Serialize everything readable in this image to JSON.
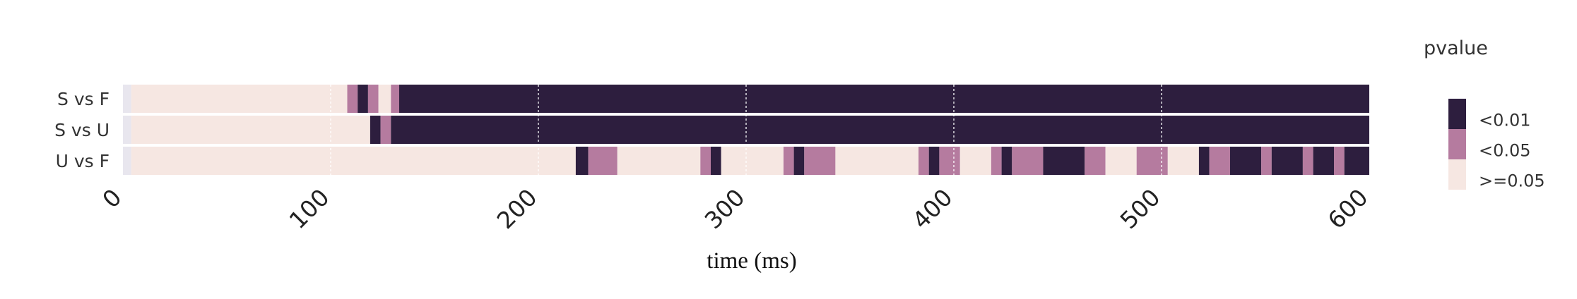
{
  "chart_data": {
    "type": "heatmap",
    "xlabel": "time (ms)",
    "xlim": [
      0,
      600
    ],
    "xticks": [
      0,
      100,
      200,
      300,
      400,
      500,
      600
    ],
    "vgrid": [
      100,
      200,
      300,
      400,
      500
    ],
    "legend": {
      "title": "pvalue",
      "placement": "right",
      "entries": [
        {
          "label": "<0.01",
          "color": "#2d1e3e"
        },
        {
          "label": "<0.05",
          "color": "#b57b9f"
        },
        {
          "label": ">=0.05",
          "color": "#f6e7e2"
        }
      ]
    },
    "colors": {
      "sig01": "#2d1e3e",
      "sig05": "#b57b9f",
      "ns": "#f6e7e2",
      "start": "#e8e6ee"
    },
    "rows": [
      {
        "label": "S vs F",
        "segments": [
          {
            "start": 0,
            "end": 4,
            "level": "start"
          },
          {
            "start": 4,
            "end": 108,
            "level": "ns"
          },
          {
            "start": 108,
            "end": 113,
            "level": "sig05"
          },
          {
            "start": 113,
            "end": 118,
            "level": "sig01"
          },
          {
            "start": 118,
            "end": 123,
            "level": "sig05"
          },
          {
            "start": 123,
            "end": 129,
            "level": "ns"
          },
          {
            "start": 129,
            "end": 133,
            "level": "sig05"
          },
          {
            "start": 133,
            "end": 603,
            "level": "sig01"
          }
        ]
      },
      {
        "label": "S vs U",
        "segments": [
          {
            "start": 0,
            "end": 4,
            "level": "start"
          },
          {
            "start": 4,
            "end": 119,
            "level": "ns"
          },
          {
            "start": 119,
            "end": 124,
            "level": "sig01"
          },
          {
            "start": 124,
            "end": 129,
            "level": "sig05"
          },
          {
            "start": 129,
            "end": 603,
            "level": "sig01"
          }
        ]
      },
      {
        "label": "U vs F",
        "segments": [
          {
            "start": 0,
            "end": 4,
            "level": "start"
          },
          {
            "start": 4,
            "end": 218,
            "level": "ns"
          },
          {
            "start": 218,
            "end": 224,
            "level": "sig01"
          },
          {
            "start": 224,
            "end": 238,
            "level": "sig05"
          },
          {
            "start": 238,
            "end": 278,
            "level": "ns"
          },
          {
            "start": 278,
            "end": 283,
            "level": "sig05"
          },
          {
            "start": 283,
            "end": 288,
            "level": "sig01"
          },
          {
            "start": 288,
            "end": 318,
            "level": "ns"
          },
          {
            "start": 318,
            "end": 323,
            "level": "sig05"
          },
          {
            "start": 323,
            "end": 328,
            "level": "sig01"
          },
          {
            "start": 328,
            "end": 343,
            "level": "sig05"
          },
          {
            "start": 343,
            "end": 383,
            "level": "ns"
          },
          {
            "start": 383,
            "end": 388,
            "level": "sig05"
          },
          {
            "start": 388,
            "end": 393,
            "level": "sig01"
          },
          {
            "start": 393,
            "end": 403,
            "level": "sig05"
          },
          {
            "start": 403,
            "end": 418,
            "level": "ns"
          },
          {
            "start": 418,
            "end": 423,
            "level": "sig05"
          },
          {
            "start": 423,
            "end": 428,
            "level": "sig01"
          },
          {
            "start": 428,
            "end": 443,
            "level": "sig05"
          },
          {
            "start": 443,
            "end": 463,
            "level": "sig01"
          },
          {
            "start": 463,
            "end": 473,
            "level": "sig05"
          },
          {
            "start": 473,
            "end": 488,
            "level": "ns"
          },
          {
            "start": 488,
            "end": 503,
            "level": "sig05"
          },
          {
            "start": 503,
            "end": 518,
            "level": "ns"
          },
          {
            "start": 518,
            "end": 523,
            "level": "sig01"
          },
          {
            "start": 523,
            "end": 533,
            "level": "sig05"
          },
          {
            "start": 533,
            "end": 548,
            "level": "sig01"
          },
          {
            "start": 548,
            "end": 553,
            "level": "sig05"
          },
          {
            "start": 553,
            "end": 568,
            "level": "sig01"
          },
          {
            "start": 568,
            "end": 573,
            "level": "sig05"
          },
          {
            "start": 573,
            "end": 583,
            "level": "sig01"
          },
          {
            "start": 583,
            "end": 588,
            "level": "sig05"
          },
          {
            "start": 588,
            "end": 603,
            "level": "sig01"
          }
        ]
      }
    ]
  }
}
